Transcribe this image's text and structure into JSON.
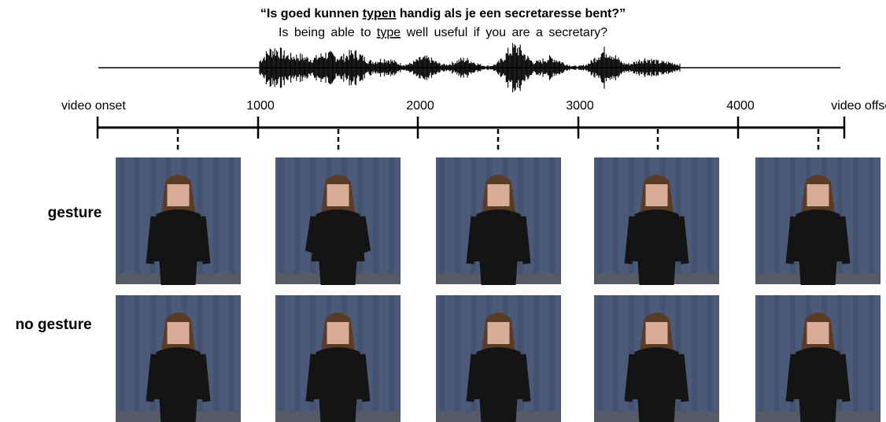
{
  "sentence_nl": {
    "before": "“Is goed kunnen ",
    "underlined": "typen",
    "after": " handig als je een secretaresse bent?”"
  },
  "sentence_en": {
    "before": "Is being able to ",
    "underlined": "type",
    "after": " well useful if you are a secretary?"
  },
  "timeline": {
    "labels": [
      "video onset",
      "1000",
      "2000",
      "3000",
      "4000",
      "video offset"
    ]
  },
  "rows": [
    "gesture",
    "no gesture"
  ]
}
